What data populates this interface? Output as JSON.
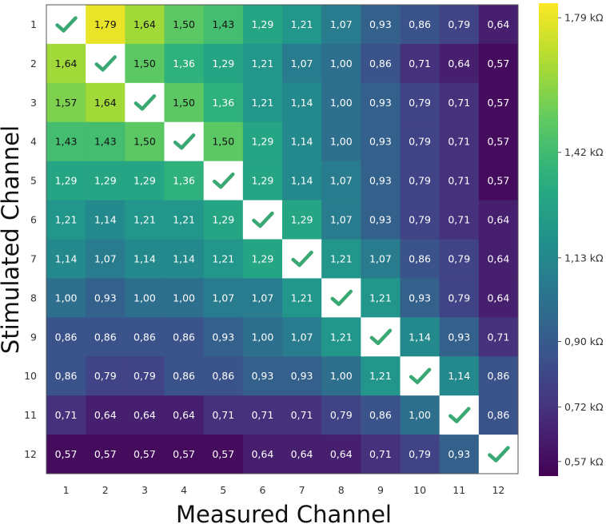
{
  "chart_data": {
    "type": "heatmap",
    "xlabel": "Measured Channel",
    "ylabel": "Stimulated Channel",
    "x_categories": [
      "1",
      "2",
      "3",
      "4",
      "5",
      "6",
      "7",
      "8",
      "9",
      "10",
      "11",
      "12"
    ],
    "y_categories": [
      "1",
      "2",
      "3",
      "4",
      "5",
      "6",
      "7",
      "8",
      "9",
      "10",
      "11",
      "12"
    ],
    "values": [
      [
        null,
        1.79,
        1.64,
        1.5,
        1.43,
        1.29,
        1.21,
        1.07,
        0.93,
        0.86,
        0.79,
        0.64
      ],
      [
        1.64,
        null,
        1.5,
        1.36,
        1.29,
        1.21,
        1.07,
        1.0,
        0.86,
        0.71,
        0.64,
        0.57
      ],
      [
        1.57,
        1.64,
        null,
        1.5,
        1.36,
        1.21,
        1.14,
        1.0,
        0.93,
        0.79,
        0.71,
        0.57
      ],
      [
        1.43,
        1.43,
        1.5,
        null,
        1.5,
        1.29,
        1.14,
        1.0,
        0.93,
        0.79,
        0.71,
        0.57
      ],
      [
        1.29,
        1.29,
        1.29,
        1.36,
        null,
        1.29,
        1.14,
        1.07,
        0.93,
        0.79,
        0.71,
        0.57
      ],
      [
        1.21,
        1.14,
        1.21,
        1.21,
        1.29,
        null,
        1.29,
        1.07,
        0.93,
        0.79,
        0.71,
        0.64
      ],
      [
        1.14,
        1.07,
        1.14,
        1.14,
        1.21,
        1.29,
        null,
        1.21,
        1.07,
        0.86,
        0.79,
        0.64
      ],
      [
        1.0,
        0.93,
        1.0,
        1.0,
        1.07,
        1.07,
        1.21,
        null,
        1.21,
        0.93,
        0.79,
        0.64
      ],
      [
        0.86,
        0.86,
        0.86,
        0.86,
        0.93,
        1.0,
        1.07,
        1.21,
        null,
        1.14,
        0.93,
        0.71
      ],
      [
        0.86,
        0.79,
        0.79,
        0.86,
        0.86,
        0.93,
        0.93,
        1.0,
        1.21,
        null,
        1.14,
        0.86
      ],
      [
        0.71,
        0.64,
        0.64,
        0.64,
        0.71,
        0.71,
        0.71,
        0.79,
        0.86,
        1.0,
        null,
        0.86
      ],
      [
        0.57,
        0.57,
        0.57,
        0.57,
        0.57,
        0.64,
        0.64,
        0.64,
        0.71,
        0.79,
        0.93,
        null
      ]
    ],
    "cell_labels": [
      [
        "",
        "1,79",
        "1,64",
        "1,50",
        "1,43",
        "1,29",
        "1,21",
        "1,07",
        "0,93",
        "0,86",
        "0,79",
        "0,64"
      ],
      [
        "1,64",
        "",
        "1,50",
        "1,36",
        "1,29",
        "1,21",
        "1,07",
        "1,00",
        "0,86",
        "0,71",
        "0,64",
        "0,57"
      ],
      [
        "1,57",
        "1,64",
        "",
        "1,50",
        "1,36",
        "1,21",
        "1,14",
        "1,00",
        "0,93",
        "0,79",
        "0,71",
        "0,57"
      ],
      [
        "1,43",
        "1,43",
        "1,50",
        "",
        "1,50",
        "1,29",
        "1,14",
        "1,00",
        "0,93",
        "0,79",
        "0,71",
        "0,57"
      ],
      [
        "1,29",
        "1,29",
        "1,29",
        "1,36",
        "",
        "1,29",
        "1,14",
        "1,07",
        "0,93",
        "0,79",
        "0,71",
        "0,57"
      ],
      [
        "1,21",
        "1,14",
        "1,21",
        "1,21",
        "1,29",
        "",
        "1,29",
        "1,07",
        "0,93",
        "0,79",
        "0,71",
        "0,64"
      ],
      [
        "1,14",
        "1,07",
        "1,14",
        "1,14",
        "1,21",
        "1,29",
        "",
        "1,21",
        "1,07",
        "0,86",
        "0,79",
        "0,64"
      ],
      [
        "1,00",
        "0,93",
        "1,00",
        "1,00",
        "1,07",
        "1,07",
        "1,21",
        "",
        "1,21",
        "0,93",
        "0,79",
        "0,64"
      ],
      [
        "0,86",
        "0,86",
        "0,86",
        "0,86",
        "0,93",
        "1,00",
        "1,07",
        "1,21",
        "",
        "1,14",
        "0,93",
        "0,71"
      ],
      [
        "0,86",
        "0,79",
        "0,79",
        "0,86",
        "0,86",
        "0,93",
        "0,93",
        "1,00",
        "1,21",
        "",
        "1,14",
        "0,86"
      ],
      [
        "0,71",
        "0,64",
        "0,64",
        "0,64",
        "0,71",
        "0,71",
        "0,71",
        "0,79",
        "0,86",
        "1,00",
        "",
        "0,86"
      ],
      [
        "0,57",
        "0,57",
        "0,57",
        "0,57",
        "0,57",
        "0,64",
        "0,64",
        "0,64",
        "0,71",
        "0,79",
        "0,93",
        ""
      ]
    ],
    "diagonal_marker": "check-icon",
    "diagonal_marker_color": "#3aa872",
    "colormap": "viridis",
    "color_range": [
      0.53,
      1.83
    ],
    "colorbar": {
      "unit": "kΩ",
      "ticks": [
        {
          "value": 1.79,
          "label": "1,79 kΩ"
        },
        {
          "value": 1.42,
          "label": "1,42 kΩ"
        },
        {
          "value": 1.13,
          "label": "1,13 kΩ"
        },
        {
          "value": 0.9,
          "label": "0,90 kΩ"
        },
        {
          "value": 0.72,
          "label": "0,72 kΩ"
        },
        {
          "value": 0.57,
          "label": "0,57 kΩ"
        }
      ]
    },
    "grid": false
  }
}
